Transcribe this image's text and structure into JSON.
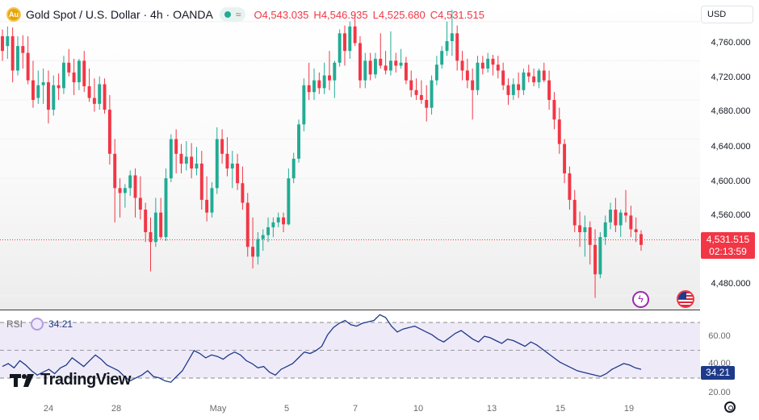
{
  "legend": {
    "symbol": "Gold Spot / U.S. Dollar · 4h · OANDA",
    "logo_letter": "Au",
    "market_icon": "market-status-icon",
    "ohlc": [
      {
        "key": "O",
        "value": "4,543.035"
      },
      {
        "key": "H",
        "value": "4,546.935"
      },
      {
        "key": "L",
        "value": "4,525.680"
      },
      {
        "key": "C",
        "value": "4,531.515"
      }
    ]
  },
  "currency": "USD",
  "last_price": {
    "value": "4,531.515",
    "countdown": "02:13:59",
    "color": "#f23645"
  },
  "rsi": {
    "label": "RSI",
    "value": "34.21",
    "line_color": "#1e3a8a",
    "axis_labels": [
      "60.00",
      "40.00",
      "20.00"
    ]
  },
  "brand": "TradingView",
  "time_labels": [
    "24",
    "28",
    "May",
    "5",
    "7",
    "10",
    "13",
    "15",
    "19"
  ],
  "chart_data": {
    "type": "candlestick",
    "price_axis_labels": [
      "4,760.000",
      "4,720.000",
      "4,680.000",
      "4,640.000",
      "4,600.000",
      "4,560.000",
      "4,480.000"
    ],
    "ylim": [
      4466,
      4782
    ],
    "up_color": "#22ab94",
    "down_color": "#f23645",
    "candles": [
      [
        4745,
        4752,
        4720,
        4730
      ],
      [
        4735,
        4755,
        4722,
        4745
      ],
      [
        4745,
        4754,
        4698,
        4710
      ],
      [
        4710,
        4745,
        4705,
        4735
      ],
      [
        4735,
        4746,
        4712,
        4728
      ],
      [
        4728,
        4745,
        4696,
        4700
      ],
      [
        4700,
        4720,
        4672,
        4680
      ],
      [
        4682,
        4710,
        4676,
        4695
      ],
      [
        4695,
        4712,
        4676,
        4698
      ],
      [
        4698,
        4710,
        4656,
        4670
      ],
      [
        4670,
        4705,
        4664,
        4695
      ],
      [
        4695,
        4707,
        4680,
        4692
      ],
      [
        4692,
        4725,
        4686,
        4718
      ],
      [
        4718,
        4732,
        4704,
        4708
      ],
      [
        4708,
        4722,
        4685,
        4698
      ],
      [
        4698,
        4722,
        4690,
        4720
      ],
      [
        4720,
        4730,
        4688,
        4694
      ],
      [
        4694,
        4712,
        4678,
        4682
      ],
      [
        4682,
        4702,
        4668,
        4676
      ],
      [
        4676,
        4704,
        4670,
        4696
      ],
      [
        4696,
        4702,
        4666,
        4670
      ],
      [
        4670,
        4685,
        4614,
        4625
      ],
      [
        4625,
        4640,
        4555,
        4590
      ],
      [
        4590,
        4600,
        4560,
        4585
      ],
      [
        4585,
        4594,
        4570,
        4590
      ],
      [
        4590,
        4608,
        4582,
        4603
      ],
      [
        4603,
        4610,
        4560,
        4580
      ],
      [
        4580,
        4602,
        4558,
        4568
      ],
      [
        4568,
        4575,
        4535,
        4545
      ],
      [
        4545,
        4560,
        4505,
        4535
      ],
      [
        4535,
        4580,
        4530,
        4565
      ],
      [
        4565,
        4580,
        4538,
        4540
      ],
      [
        4540,
        4610,
        4536,
        4600
      ],
      [
        4600,
        4645,
        4596,
        4640
      ],
      [
        4640,
        4650,
        4605,
        4625
      ],
      [
        4625,
        4635,
        4605,
        4615
      ],
      [
        4615,
        4638,
        4608,
        4622
      ],
      [
        4622,
        4636,
        4600,
        4610
      ],
      [
        4610,
        4632,
        4603,
        4615
      ],
      [
        4615,
        4628,
        4568,
        4578
      ],
      [
        4578,
        4602,
        4556,
        4565
      ],
      [
        4565,
        4596,
        4560,
        4590
      ],
      [
        4590,
        4652,
        4584,
        4640
      ],
      [
        4640,
        4650,
        4615,
        4625
      ],
      [
        4625,
        4642,
        4602,
        4610
      ],
      [
        4610,
        4628,
        4590,
        4615
      ],
      [
        4615,
        4625,
        4588,
        4595
      ],
      [
        4595,
        4612,
        4568,
        4575
      ],
      [
        4575,
        4585,
        4520,
        4530
      ],
      [
        4530,
        4560,
        4508,
        4520
      ],
      [
        4520,
        4545,
        4512,
        4538
      ],
      [
        4538,
        4548,
        4526,
        4542
      ],
      [
        4542,
        4560,
        4535,
        4550
      ],
      [
        4550,
        4560,
        4540,
        4555
      ],
      [
        4555,
        4565,
        4550,
        4560
      ],
      [
        4560,
        4565,
        4545,
        4553
      ],
      [
        4553,
        4610,
        4552,
        4600
      ],
      [
        4600,
        4626,
        4595,
        4620
      ],
      [
        4620,
        4660,
        4616,
        4655
      ],
      [
        4655,
        4702,
        4648,
        4695
      ],
      [
        4695,
        4718,
        4680,
        4688
      ],
      [
        4688,
        4712,
        4680,
        4700
      ],
      [
        4700,
        4708,
        4686,
        4692
      ],
      [
        4692,
        4718,
        4686,
        4705
      ],
      [
        4705,
        4730,
        4690,
        4700
      ],
      [
        4700,
        4720,
        4682,
        4718
      ],
      [
        4718,
        4752,
        4714,
        4748
      ],
      [
        4748,
        4756,
        4715,
        4730
      ],
      [
        4730,
        4760,
        4722,
        4755
      ],
      [
        4755,
        4768,
        4735,
        4738
      ],
      [
        4738,
        4745,
        4692,
        4700
      ],
      [
        4700,
        4728,
        4692,
        4720
      ],
      [
        4720,
        4728,
        4700,
        4706
      ],
      [
        4706,
        4728,
        4702,
        4722
      ],
      [
        4722,
        4748,
        4712,
        4715
      ],
      [
        4715,
        4730,
        4706,
        4710
      ],
      [
        4710,
        4750,
        4705,
        4720
      ],
      [
        4720,
        4728,
        4708,
        4715
      ],
      [
        4715,
        4732,
        4712,
        4718
      ],
      [
        4718,
        4724,
        4696,
        4700
      ],
      [
        4700,
        4710,
        4683,
        4690
      ],
      [
        4690,
        4702,
        4680,
        4685
      ],
      [
        4685,
        4700,
        4676,
        4680
      ],
      [
        4680,
        4695,
        4658,
        4672
      ],
      [
        4672,
        4705,
        4665,
        4700
      ],
      [
        4700,
        4725,
        4695,
        4716
      ],
      [
        4716,
        4735,
        4712,
        4730
      ],
      [
        4730,
        4760,
        4725,
        4740
      ],
      [
        4740,
        4772,
        4725,
        4748
      ],
      [
        4748,
        4756,
        4710,
        4720
      ],
      [
        4720,
        4730,
        4700,
        4710
      ],
      [
        4710,
        4722,
        4692,
        4700
      ],
      [
        4700,
        4712,
        4660,
        4690
      ],
      [
        4690,
        4725,
        4685,
        4718
      ],
      [
        4718,
        4725,
        4706,
        4712
      ],
      [
        4712,
        4728,
        4708,
        4722
      ],
      [
        4722,
        4726,
        4705,
        4716
      ],
      [
        4716,
        4725,
        4702,
        4710
      ],
      [
        4710,
        4718,
        4690,
        4695
      ],
      [
        4695,
        4702,
        4675,
        4685
      ],
      [
        4685,
        4702,
        4680,
        4696
      ],
      [
        4696,
        4708,
        4682,
        4690
      ],
      [
        4690,
        4712,
        4685,
        4708
      ],
      [
        4708,
        4716,
        4698,
        4704
      ],
      [
        4704,
        4712,
        4694,
        4698
      ],
      [
        4698,
        4712,
        4692,
        4710
      ],
      [
        4710,
        4718,
        4698,
        4700
      ],
      [
        4700,
        4710,
        4670,
        4680
      ],
      [
        4680,
        4688,
        4650,
        4660
      ],
      [
        4660,
        4672,
        4625,
        4635
      ],
      [
        4635,
        4640,
        4595,
        4605
      ],
      [
        4605,
        4612,
        4568,
        4578
      ],
      [
        4578,
        4588,
        4545,
        4552
      ],
      [
        4552,
        4566,
        4530,
        4545
      ],
      [
        4545,
        4562,
        4520,
        4550
      ],
      [
        4550,
        4556,
        4512,
        4532
      ],
      [
        4532,
        4548,
        4478,
        4502
      ],
      [
        4502,
        4545,
        4498,
        4540
      ],
      [
        4540,
        4562,
        4532,
        4555
      ],
      [
        4555,
        4575,
        4548,
        4568
      ],
      [
        4568,
        4580,
        4545,
        4552
      ],
      [
        4552,
        4568,
        4540,
        4565
      ],
      [
        4565,
        4588,
        4555,
        4562
      ],
      [
        4562,
        4572,
        4540,
        4548
      ],
      [
        4548,
        4560,
        4535,
        4545
      ],
      [
        4543,
        4547,
        4526,
        4532
      ]
    ],
    "rsi_series": [
      36,
      38,
      35,
      40,
      37,
      33,
      30,
      32,
      34,
      31,
      35,
      37,
      42,
      39,
      36,
      40,
      44,
      41,
      37,
      35,
      33,
      29,
      26,
      28,
      30,
      33,
      29,
      28,
      26,
      25,
      29,
      33,
      40,
      47,
      45,
      42,
      44,
      43,
      41,
      44,
      46,
      44,
      40,
      38,
      35,
      36,
      32,
      30,
      34,
      36,
      38,
      42,
      46,
      45,
      47,
      50,
      58,
      63,
      66,
      68,
      65,
      64,
      66,
      67,
      68,
      72,
      70,
      64,
      60,
      62,
      63,
      64,
      62,
      60,
      58,
      55,
      53,
      56,
      59,
      61,
      58,
      55,
      53,
      57,
      56,
      54,
      52,
      55,
      54,
      52,
      50,
      53,
      51,
      48,
      45,
      42,
      39,
      37,
      35,
      33,
      32,
      31,
      30,
      29,
      31,
      34,
      36,
      38,
      37,
      35,
      34
    ],
    "rsi_ylim": [
      15,
      75
    ]
  }
}
